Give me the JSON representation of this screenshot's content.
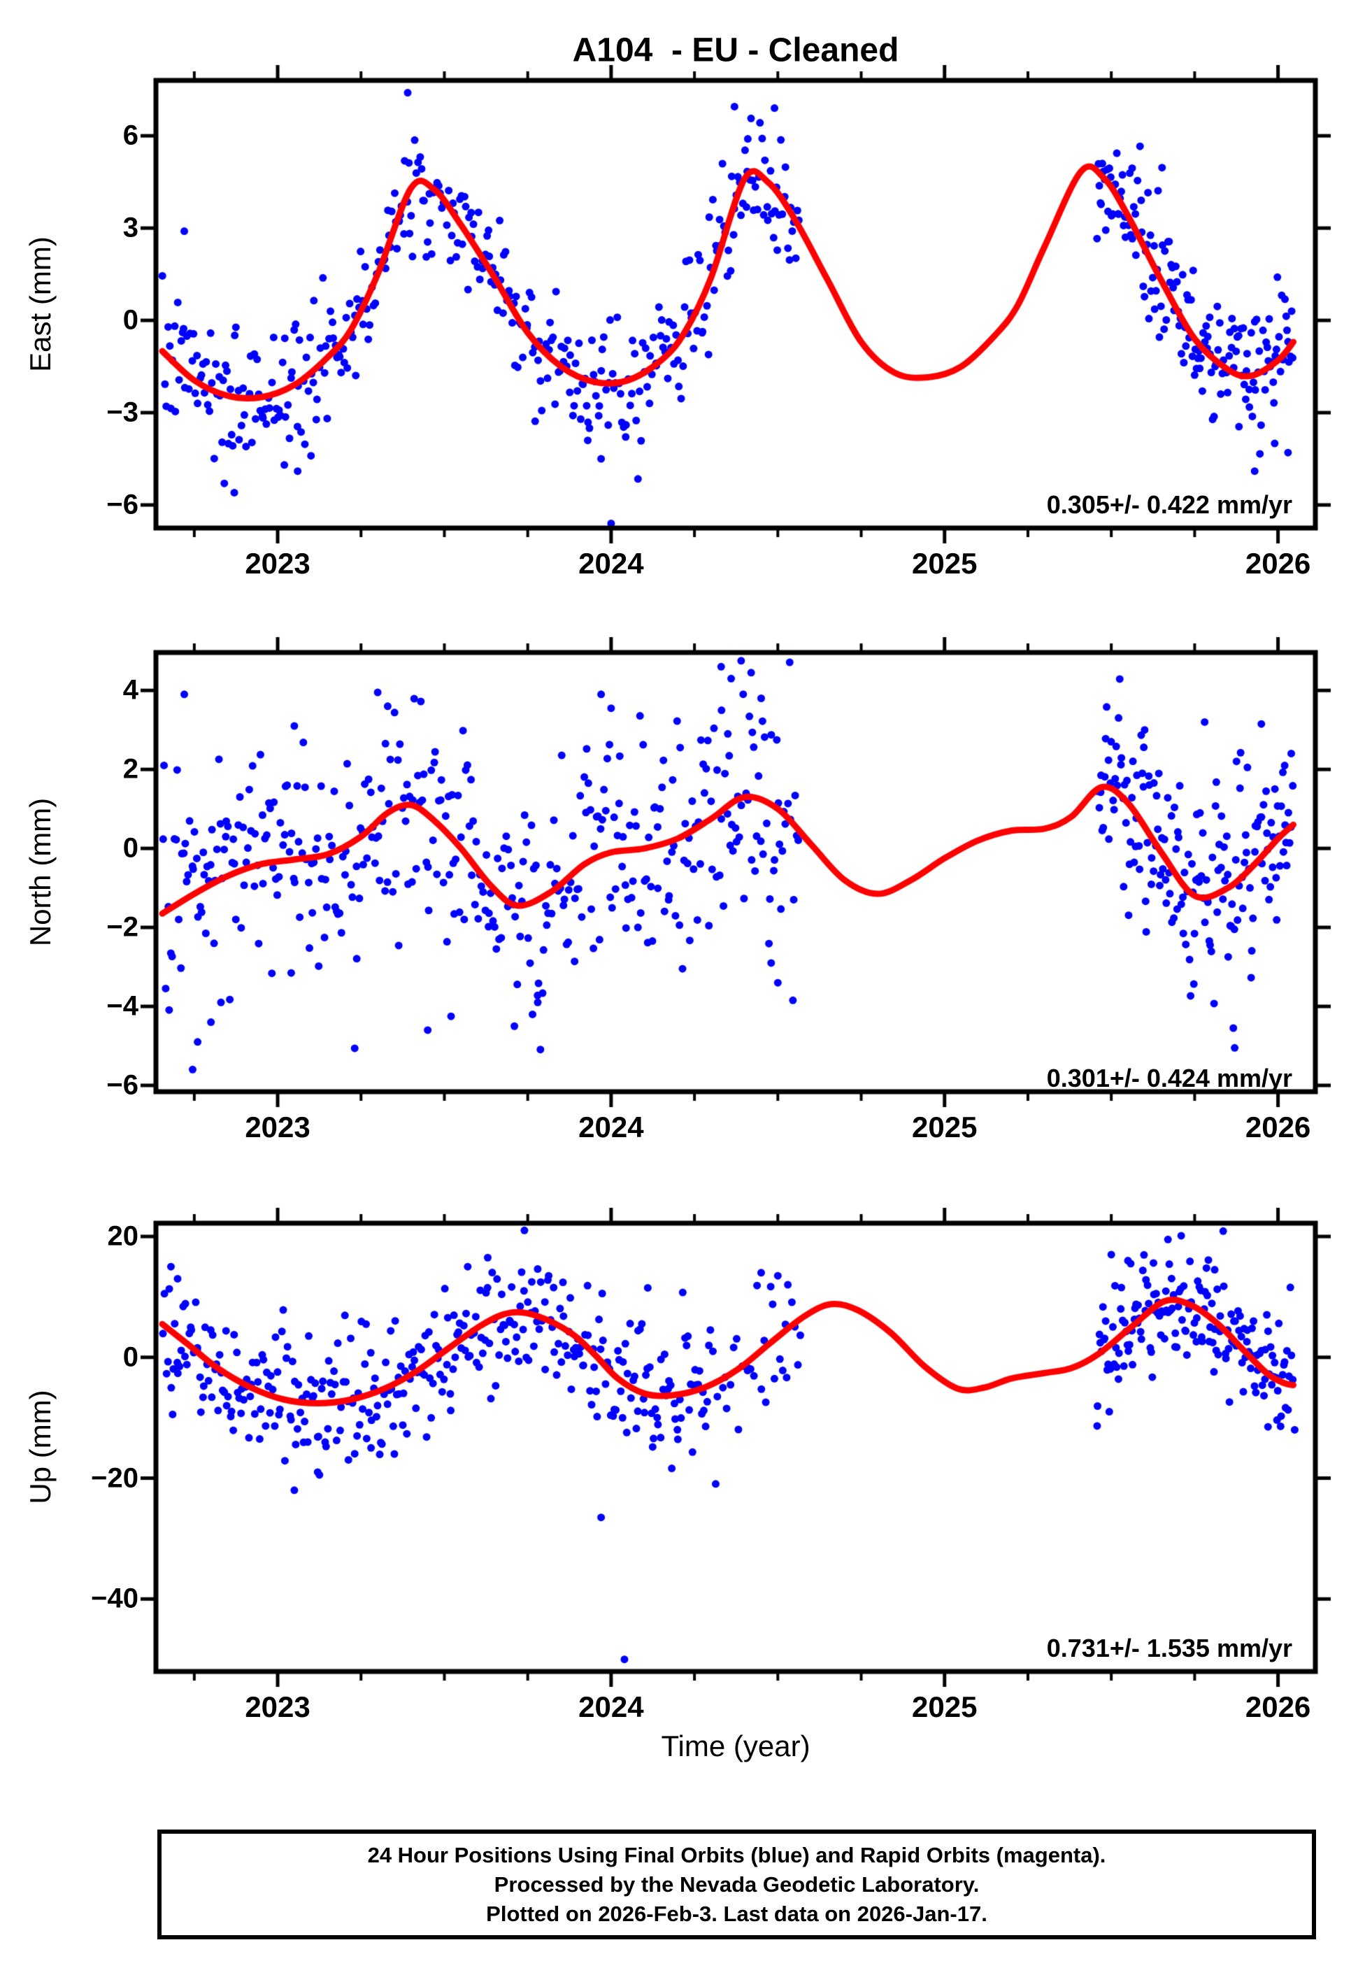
{
  "title": "A104  - EU - Cleaned",
  "colors": {
    "marker": "#0000ff",
    "fit_line": "#ff0000",
    "frame": "#000000",
    "background": "#ffffff"
  },
  "time_axis": {
    "label": "Time (year)",
    "min": 2022.635,
    "max": 2026.112,
    "major_ticks": [
      2023,
      2024,
      2025,
      2026
    ],
    "major_tick_labels": [
      "2023",
      "2024",
      "2025",
      "2026"
    ],
    "minor_step": 0.25
  },
  "footer": {
    "lines": [
      "24 Hour Positions Using Final Orbits (blue) and Rapid Orbits (magenta).",
      "Processed by the Nevada Geodetic Laboratory.",
      "Plotted on 2026-Feb-3. Last data on 2026-Jan-17."
    ]
  },
  "chart_data": [
    {
      "type": "scatter",
      "name": "east",
      "ylabel": "East (mm)",
      "ylim": [
        -6.75,
        7.8
      ],
      "ytick_values": [
        6,
        3,
        0,
        -3,
        -6
      ],
      "ytick_labels": [
        "6",
        "3",
        "0",
        "−3",
        "−6"
      ],
      "rate_label": "0.305+/- 0.422 mm/yr",
      "seed": 7,
      "scatter_segments": [
        {
          "t0": 2022.654,
          "t1": 2024.565,
          "n": 400,
          "sd": 1.05
        },
        {
          "t0": 2025.455,
          "t1": 2026.046,
          "n": 170,
          "sd": 1.05
        }
      ],
      "outliers": [
        [
          2022.72,
          2.9
        ],
        [
          2023.39,
          7.4
        ],
        [
          2024.37,
          6.95
        ],
        [
          2024.49,
          6.9
        ],
        [
          2024.41,
          5.9
        ],
        [
          2022.84,
          -5.3
        ],
        [
          2022.87,
          -5.6
        ],
        [
          2023.02,
          -4.7
        ],
        [
          2023.06,
          -4.9
        ],
        [
          2023.1,
          -4.4
        ],
        [
          2023.93,
          -3.9
        ],
        [
          2023.97,
          -4.5
        ],
        [
          2024.0,
          -6.6
        ],
        [
          2025.93,
          -4.9
        ],
        [
          2025.99,
          -4.0
        ],
        [
          2026.03,
          -4.3
        ]
      ],
      "fit_curve": [
        [
          2022.654,
          -1.0
        ],
        [
          2022.75,
          -1.95
        ],
        [
          2022.85,
          -2.45
        ],
        [
          2022.95,
          -2.5
        ],
        [
          2023.05,
          -2.1
        ],
        [
          2023.15,
          -1.2
        ],
        [
          2023.22,
          -0.3
        ],
        [
          2023.3,
          1.5
        ],
        [
          2023.4,
          4.3
        ],
        [
          2023.47,
          4.25
        ],
        [
          2023.55,
          3.1
        ],
        [
          2023.65,
          1.4
        ],
        [
          2023.75,
          -0.4
        ],
        [
          2023.85,
          -1.5
        ],
        [
          2023.95,
          -2.0
        ],
        [
          2024.05,
          -1.95
        ],
        [
          2024.15,
          -1.3
        ],
        [
          2024.22,
          -0.4
        ],
        [
          2024.3,
          1.4
        ],
        [
          2024.4,
          4.6
        ],
        [
          2024.47,
          4.5
        ],
        [
          2024.55,
          3.3
        ],
        [
          2024.65,
          1.3
        ],
        [
          2024.75,
          -0.7
        ],
        [
          2024.85,
          -1.7
        ],
        [
          2024.95,
          -1.85
        ],
        [
          2025.05,
          -1.5
        ],
        [
          2025.15,
          -0.5
        ],
        [
          2025.22,
          0.5
        ],
        [
          2025.3,
          2.4
        ],
        [
          2025.41,
          4.85
        ],
        [
          2025.48,
          4.6
        ],
        [
          2025.55,
          3.4
        ],
        [
          2025.65,
          1.3
        ],
        [
          2025.75,
          -0.6
        ],
        [
          2025.85,
          -1.6
        ],
        [
          2025.92,
          -1.8
        ],
        [
          2026.0,
          -1.3
        ],
        [
          2026.046,
          -0.7
        ]
      ]
    },
    {
      "type": "scatter",
      "name": "north",
      "ylabel": "North (mm)",
      "ylim": [
        -6.16,
        4.96
      ],
      "ytick_values": [
        4,
        2,
        0,
        -2,
        -4,
        -6
      ],
      "ytick_labels": [
        "4",
        "2",
        "0",
        "−2",
        "−4",
        "−6"
      ],
      "rate_label": "0.301+/- 0.424 mm/yr",
      "seed": 13,
      "scatter_segments": [
        {
          "t0": 2022.654,
          "t1": 2024.565,
          "n": 400,
          "sd": 1.45
        },
        {
          "t0": 2025.455,
          "t1": 2026.046,
          "n": 175,
          "sd": 1.2
        }
      ],
      "outliers": [
        [
          2022.72,
          3.9
        ],
        [
          2022.745,
          -5.6
        ],
        [
          2022.76,
          -6.25
        ],
        [
          2022.76,
          -4.9
        ],
        [
          2022.8,
          -4.4
        ],
        [
          2022.83,
          -3.9
        ],
        [
          2023.05,
          3.1
        ],
        [
          2023.3,
          3.95
        ],
        [
          2023.33,
          3.6
        ],
        [
          2023.45,
          -4.6
        ],
        [
          2023.52,
          -4.25
        ],
        [
          2023.71,
          -4.5
        ],
        [
          2023.78,
          -3.9
        ],
        [
          2023.97,
          3.9
        ],
        [
          2024.0,
          3.55
        ],
        [
          2024.33,
          4.6
        ],
        [
          2024.36,
          4.3
        ],
        [
          2024.39,
          4.75
        ],
        [
          2024.42,
          4.45
        ],
        [
          2024.45,
          3.8
        ],
        [
          2024.35,
          2.9
        ],
        [
          2024.48,
          -2.9
        ],
        [
          2024.5,
          -3.4
        ],
        [
          2025.6,
          3.0
        ],
        [
          2025.78,
          3.2
        ],
        [
          2025.87,
          -5.05
        ],
        [
          2025.95,
          3.15
        ],
        [
          2026.02,
          2.1
        ]
      ],
      "fit_curve": [
        [
          2022.654,
          -1.65
        ],
        [
          2022.75,
          -1.15
        ],
        [
          2022.85,
          -0.7
        ],
        [
          2022.95,
          -0.4
        ],
        [
          2023.05,
          -0.28
        ],
        [
          2023.15,
          -0.15
        ],
        [
          2023.25,
          0.3
        ],
        [
          2023.33,
          0.9
        ],
        [
          2023.4,
          1.1
        ],
        [
          2023.47,
          0.7
        ],
        [
          2023.55,
          0.0
        ],
        [
          2023.64,
          -0.95
        ],
        [
          2023.72,
          -1.45
        ],
        [
          2023.82,
          -1.1
        ],
        [
          2023.92,
          -0.4
        ],
        [
          2024.0,
          -0.1
        ],
        [
          2024.1,
          0.0
        ],
        [
          2024.2,
          0.25
        ],
        [
          2024.3,
          0.75
        ],
        [
          2024.4,
          1.3
        ],
        [
          2024.5,
          1.0
        ],
        [
          2024.6,
          0.1
        ],
        [
          2024.7,
          -0.8
        ],
        [
          2024.8,
          -1.15
        ],
        [
          2024.9,
          -0.8
        ],
        [
          2025.0,
          -0.25
        ],
        [
          2025.1,
          0.2
        ],
        [
          2025.2,
          0.45
        ],
        [
          2025.3,
          0.5
        ],
        [
          2025.38,
          0.8
        ],
        [
          2025.47,
          1.55
        ],
        [
          2025.55,
          1.15
        ],
        [
          2025.65,
          -0.1
        ],
        [
          2025.75,
          -1.2
        ],
        [
          2025.85,
          -1.0
        ],
        [
          2025.93,
          -0.4
        ],
        [
          2026.0,
          0.25
        ],
        [
          2026.046,
          0.6
        ]
      ]
    },
    {
      "type": "scatter",
      "name": "up",
      "ylabel": "Up (mm)",
      "ylim": [
        -52.0,
        22.2
      ],
      "ytick_values": [
        20,
        0,
        -20,
        -40
      ],
      "ytick_labels": [
        "20",
        "0",
        "−20",
        "−40"
      ],
      "rate_label": "0.731+/- 1.535 mm/yr",
      "seed": 21,
      "scatter_segments": [
        {
          "t0": 2022.654,
          "t1": 2024.3,
          "n": 360,
          "sd": 5.6
        },
        {
          "t0": 2024.3,
          "t1": 2024.57,
          "n": 30,
          "sd": 6.0
        },
        {
          "t0": 2025.455,
          "t1": 2026.046,
          "n": 175,
          "sd": 5.0
        }
      ],
      "outliers": [
        [
          2022.68,
          15
        ],
        [
          2022.7,
          13
        ],
        [
          2023.05,
          -22
        ],
        [
          2023.12,
          -19
        ],
        [
          2023.28,
          -15
        ],
        [
          2023.35,
          -16
        ],
        [
          2023.57,
          15
        ],
        [
          2023.63,
          16.5
        ],
        [
          2023.74,
          21
        ],
        [
          2023.97,
          -26.5
        ],
        [
          2024.04,
          -50
        ],
        [
          2024.11,
          11.5
        ],
        [
          2024.45,
          14
        ],
        [
          2024.5,
          13.5
        ],
        [
          2024.53,
          12
        ],
        [
          2025.5,
          17
        ],
        [
          2025.55,
          16
        ],
        [
          2025.67,
          19.5
        ],
        [
          2025.81,
          14.5
        ],
        [
          2025.97,
          -11.5
        ],
        [
          2026.05,
          -12
        ]
      ],
      "fit_curve": [
        [
          2022.654,
          5.5
        ],
        [
          2022.73,
          2.2
        ],
        [
          2022.82,
          -1.8
        ],
        [
          2022.92,
          -5.0
        ],
        [
          2023.02,
          -7.0
        ],
        [
          2023.12,
          -7.6
        ],
        [
          2023.22,
          -7.0
        ],
        [
          2023.32,
          -5.2
        ],
        [
          2023.42,
          -2.2
        ],
        [
          2023.52,
          1.8
        ],
        [
          2023.62,
          5.6
        ],
        [
          2023.7,
          7.4
        ],
        [
          2023.78,
          6.8
        ],
        [
          2023.88,
          4.0
        ],
        [
          2023.95,
          0.5
        ],
        [
          2024.02,
          -3.5
        ],
        [
          2024.1,
          -6.0
        ],
        [
          2024.18,
          -6.3
        ],
        [
          2024.28,
          -5.0
        ],
        [
          2024.38,
          -2.0
        ],
        [
          2024.48,
          2.5
        ],
        [
          2024.58,
          6.8
        ],
        [
          2024.66,
          8.8
        ],
        [
          2024.74,
          7.8
        ],
        [
          2024.84,
          4.0
        ],
        [
          2024.94,
          -1.5
        ],
        [
          2025.04,
          -5.2
        ],
        [
          2025.12,
          -5.0
        ],
        [
          2025.2,
          -3.5
        ],
        [
          2025.3,
          -2.6
        ],
        [
          2025.38,
          -1.8
        ],
        [
          2025.46,
          0.5
        ],
        [
          2025.56,
          5.0
        ],
        [
          2025.66,
          9.3
        ],
        [
          2025.74,
          8.6
        ],
        [
          2025.82,
          5.5
        ],
        [
          2025.9,
          1.0
        ],
        [
          2025.97,
          -2.8
        ],
        [
          2026.02,
          -4.3
        ],
        [
          2026.046,
          -4.6
        ]
      ]
    }
  ]
}
